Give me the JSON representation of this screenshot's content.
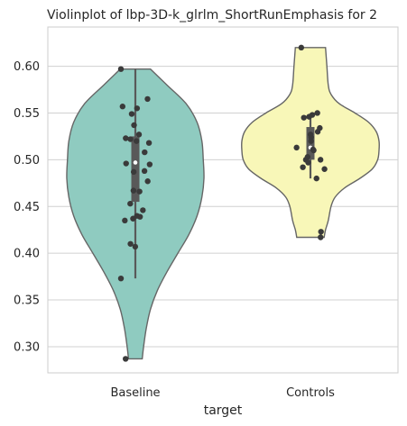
{
  "chart_data": {
    "type": "violin",
    "title": "Violinplot of lbp-3D-k_glrlm_ShortRunEmphasis for 2",
    "xlabel": "target",
    "ylabel": "",
    "ylim": [
      0.272,
      0.642
    ],
    "yticks": [
      "0.30",
      "0.35",
      "0.40",
      "0.45",
      "0.50",
      "0.55",
      "0.60"
    ],
    "grid": true,
    "categories": [
      "Baseline",
      "Controls"
    ],
    "colors": {
      "Baseline": "#8fcbc0",
      "Controls": "#f8f7b8",
      "points": "#3a3a3a",
      "box": "#595959",
      "outline": "#666666",
      "grid": "#d0d0d0"
    },
    "violins": [
      {
        "name": "Baseline",
        "min": 0.287,
        "max": 0.597,
        "q1": 0.455,
        "median": 0.497,
        "q3": 0.525,
        "whisker_low": 0.373,
        "whisker_high": 0.597,
        "density": [
          [
            0.287,
            0.1
          ],
          [
            0.3,
            0.12
          ],
          [
            0.32,
            0.16
          ],
          [
            0.34,
            0.22
          ],
          [
            0.36,
            0.32
          ],
          [
            0.38,
            0.46
          ],
          [
            0.4,
            0.62
          ],
          [
            0.42,
            0.78
          ],
          [
            0.44,
            0.9
          ],
          [
            0.46,
            0.97
          ],
          [
            0.48,
            1.0
          ],
          [
            0.5,
            0.99
          ],
          [
            0.52,
            0.97
          ],
          [
            0.54,
            0.9
          ],
          [
            0.56,
            0.74
          ],
          [
            0.58,
            0.46
          ],
          [
            0.597,
            0.22
          ]
        ],
        "points": [
          0.597,
          0.565,
          0.557,
          0.555,
          0.549,
          0.537,
          0.527,
          0.523,
          0.522,
          0.52,
          0.518,
          0.508,
          0.496,
          0.495,
          0.488,
          0.487,
          0.477,
          0.467,
          0.466,
          0.453,
          0.446,
          0.44,
          0.439,
          0.437,
          0.435,
          0.41,
          0.407,
          0.373,
          0.287
        ]
      },
      {
        "name": "Controls",
        "min": 0.417,
        "max": 0.62,
        "q1": 0.5,
        "median": 0.513,
        "q3": 0.535,
        "whisker_low": 0.48,
        "whisker_high": 0.548,
        "density": [
          [
            0.417,
            0.2
          ],
          [
            0.425,
            0.22
          ],
          [
            0.435,
            0.26
          ],
          [
            0.45,
            0.3
          ],
          [
            0.46,
            0.36
          ],
          [
            0.47,
            0.5
          ],
          [
            0.48,
            0.72
          ],
          [
            0.49,
            0.9
          ],
          [
            0.5,
            0.98
          ],
          [
            0.51,
            1.0
          ],
          [
            0.52,
            1.0
          ],
          [
            0.53,
            0.96
          ],
          [
            0.54,
            0.85
          ],
          [
            0.55,
            0.65
          ],
          [
            0.56,
            0.42
          ],
          [
            0.57,
            0.3
          ],
          [
            0.58,
            0.26
          ],
          [
            0.6,
            0.24
          ],
          [
            0.62,
            0.22
          ]
        ],
        "points": [
          0.62,
          0.55,
          0.548,
          0.546,
          0.545,
          0.534,
          0.53,
          0.527,
          0.524,
          0.52,
          0.513,
          0.511,
          0.51,
          0.503,
          0.5,
          0.5,
          0.497,
          0.492,
          0.49,
          0.48,
          0.423,
          0.417
        ]
      }
    ]
  }
}
